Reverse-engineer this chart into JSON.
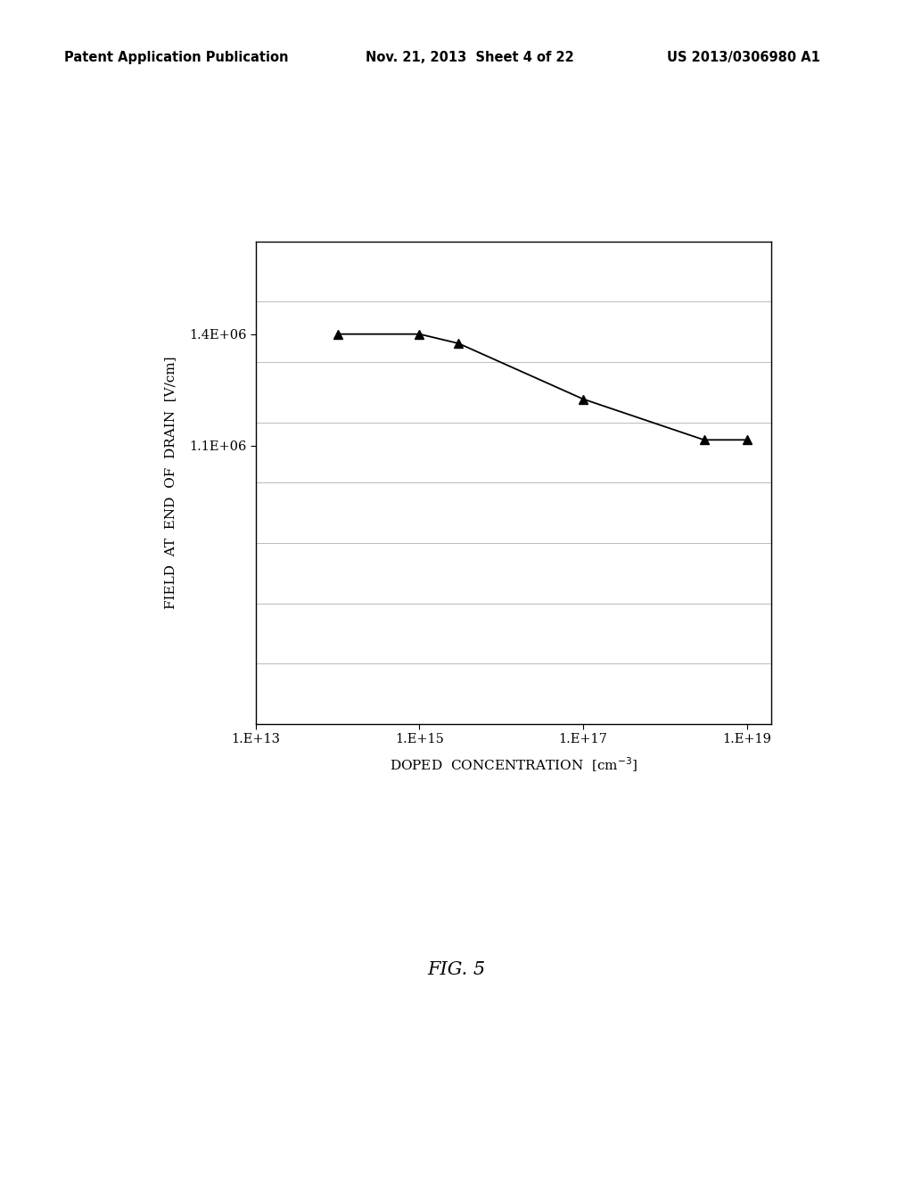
{
  "x_points": [
    100000000000000.0,
    1000000000000000.0,
    3000000000000000.0,
    1e+17,
    3e+18,
    1e+19
  ],
  "y_points": [
    1400000.0,
    1400000.0,
    1375000.0,
    1225000.0,
    1115000.0,
    1115000.0
  ],
  "xlabel": "DOPED  CONCENTRATION  [cm$^{-3}$]",
  "ylabel": "FIELD  AT  END  OF  DRAIN  [V/cm]",
  "figure_label": "FIG. 5",
  "header_left": "Patent Application Publication",
  "header_center": "Nov. 21, 2013  Sheet 4 of 22",
  "header_right": "US 2013/0306980 A1",
  "xtick_positions": [
    10000000000000.0,
    1000000000000000.0,
    1e+17,
    1e+19
  ],
  "xtick_labels": [
    "1.E+13",
    "1.E+15",
    "1.E+17",
    "1.E+19"
  ],
  "ylim": [
    350000.0,
    1650000.0
  ],
  "ytick_positions": [
    1100000.0,
    1400000.0
  ],
  "ytick_labels": [
    "1.1E+06",
    "1.4E+06"
  ],
  "line_color": "#000000",
  "marker": "^",
  "marker_size": 7,
  "bg_color": "#ffffff",
  "grid_color": "#bbbbbb",
  "n_hgrid": 8,
  "xlim_left": 10000000000000.0,
  "xlim_right": 2e+19
}
